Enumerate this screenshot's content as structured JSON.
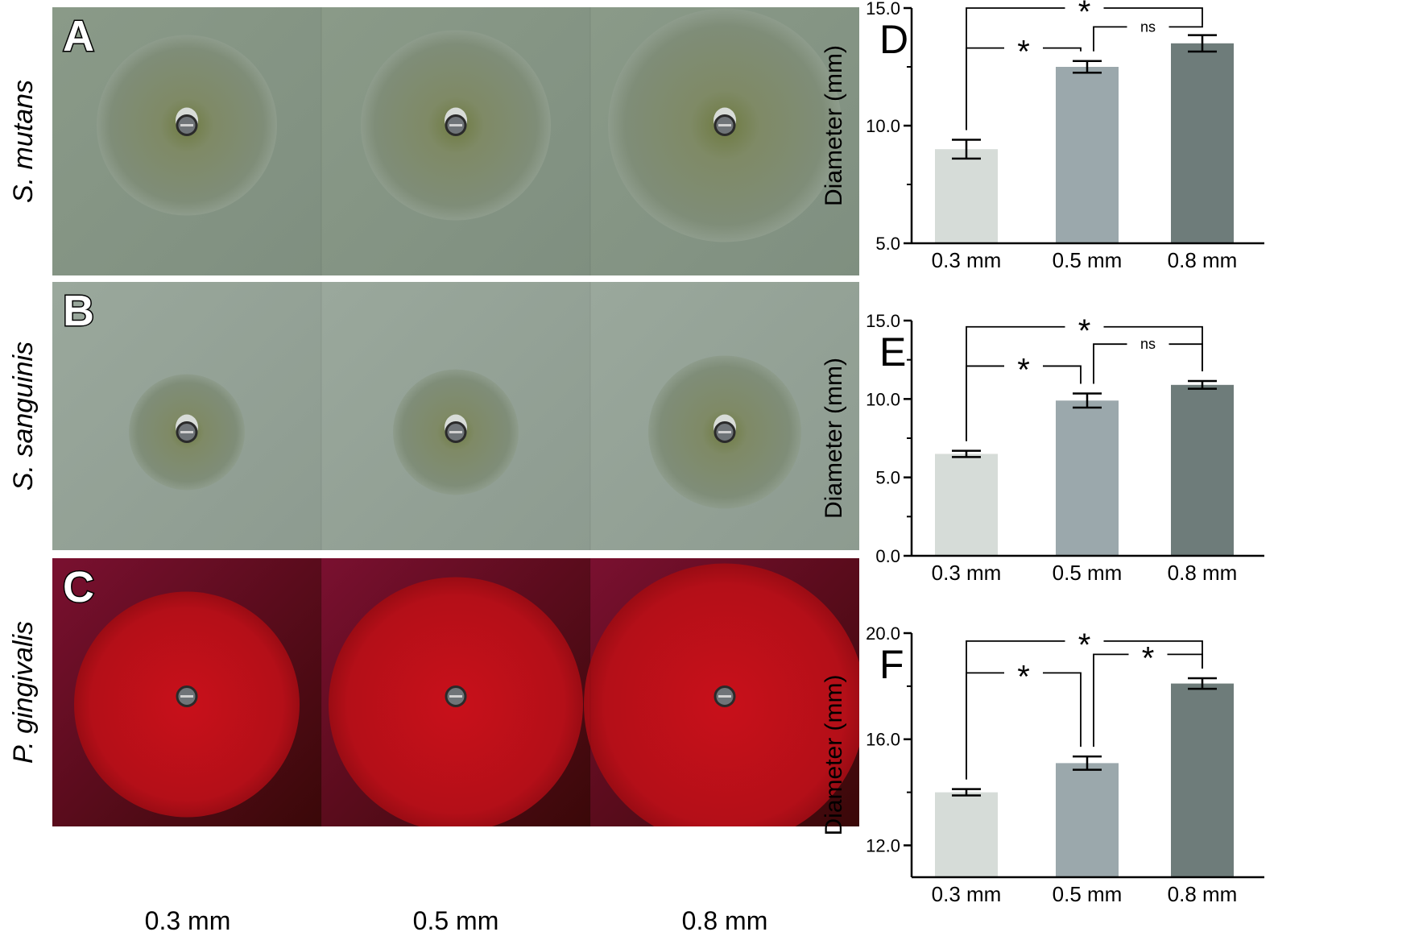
{
  "photo_panels": [
    {
      "letter": "A",
      "organism": "S. mutans",
      "style": "green",
      "zone_radii": [
        112,
        118,
        145
      ]
    },
    {
      "letter": "B",
      "organism": "S. sanguinis",
      "style": "green-light",
      "zone_radii": [
        72,
        78,
        95
      ]
    },
    {
      "letter": "C",
      "organism": "P. gingivalis",
      "style": "red",
      "zone_radii": [
        140,
        158,
        175
      ]
    }
  ],
  "photo_column_labels": [
    "0.3 mm",
    "0.5 mm",
    "0.8 mm"
  ],
  "colors": {
    "bar_03": "#d6dcd8",
    "bar_05": "#9ba8ac",
    "bar_08": "#6e7c7a"
  },
  "chart_data": [
    {
      "letter": "D",
      "type": "bar",
      "categories": [
        "0.3 mm",
        "0.5 mm",
        "0.8 mm"
      ],
      "values": [
        9.0,
        12.5,
        13.5
      ],
      "errors": [
        0.4,
        0.25,
        0.35
      ],
      "ylabel": "Diameter (mm)",
      "ylim": [
        5.0,
        15.0
      ],
      "yticks": [
        "5.0",
        "10.0",
        "15.0"
      ],
      "ytick_values": [
        5.0,
        10.0,
        15.0
      ],
      "comparisons": [
        {
          "from": 0,
          "to": 1,
          "label": "*",
          "y": 13.3
        },
        {
          "from": 1,
          "to": 2,
          "label": "ns",
          "y": 14.2
        },
        {
          "from": 0,
          "to": 2,
          "label": "*",
          "y": 15.0
        }
      ]
    },
    {
      "letter": "E",
      "type": "bar",
      "categories": [
        "0.3 mm",
        "0.5 mm",
        "0.8 mm"
      ],
      "values": [
        6.5,
        9.9,
        10.9
      ],
      "errors": [
        0.2,
        0.45,
        0.25
      ],
      "ylabel": "Diameter (mm)",
      "ylim": [
        0.0,
        15.0
      ],
      "yticks": [
        "0.0",
        "5.0",
        "10.0",
        "15.0"
      ],
      "ytick_values": [
        0.0,
        5.0,
        10.0,
        15.0
      ],
      "comparisons": [
        {
          "from": 0,
          "to": 1,
          "label": "*",
          "y": 12.1
        },
        {
          "from": 1,
          "to": 2,
          "label": "ns",
          "y": 13.5
        },
        {
          "from": 0,
          "to": 2,
          "label": "*",
          "y": 14.6
        }
      ]
    },
    {
      "letter": "F",
      "type": "bar",
      "categories": [
        "0.3 mm",
        "0.5 mm",
        "0.8 mm"
      ],
      "values": [
        14.0,
        15.1,
        18.1
      ],
      "errors": [
        0.12,
        0.25,
        0.2
      ],
      "ylabel": "Diameter (mm)",
      "ylim": [
        10.8,
        20.0
      ],
      "yticks": [
        "12.0",
        "16.0",
        "20.0"
      ],
      "ytick_values": [
        12.0,
        16.0,
        20.0
      ],
      "comparisons": [
        {
          "from": 0,
          "to": 1,
          "label": "*",
          "y": 18.5
        },
        {
          "from": 1,
          "to": 2,
          "label": "*",
          "y": 19.2
        },
        {
          "from": 0,
          "to": 2,
          "label": "*",
          "y": 19.7
        }
      ]
    }
  ]
}
